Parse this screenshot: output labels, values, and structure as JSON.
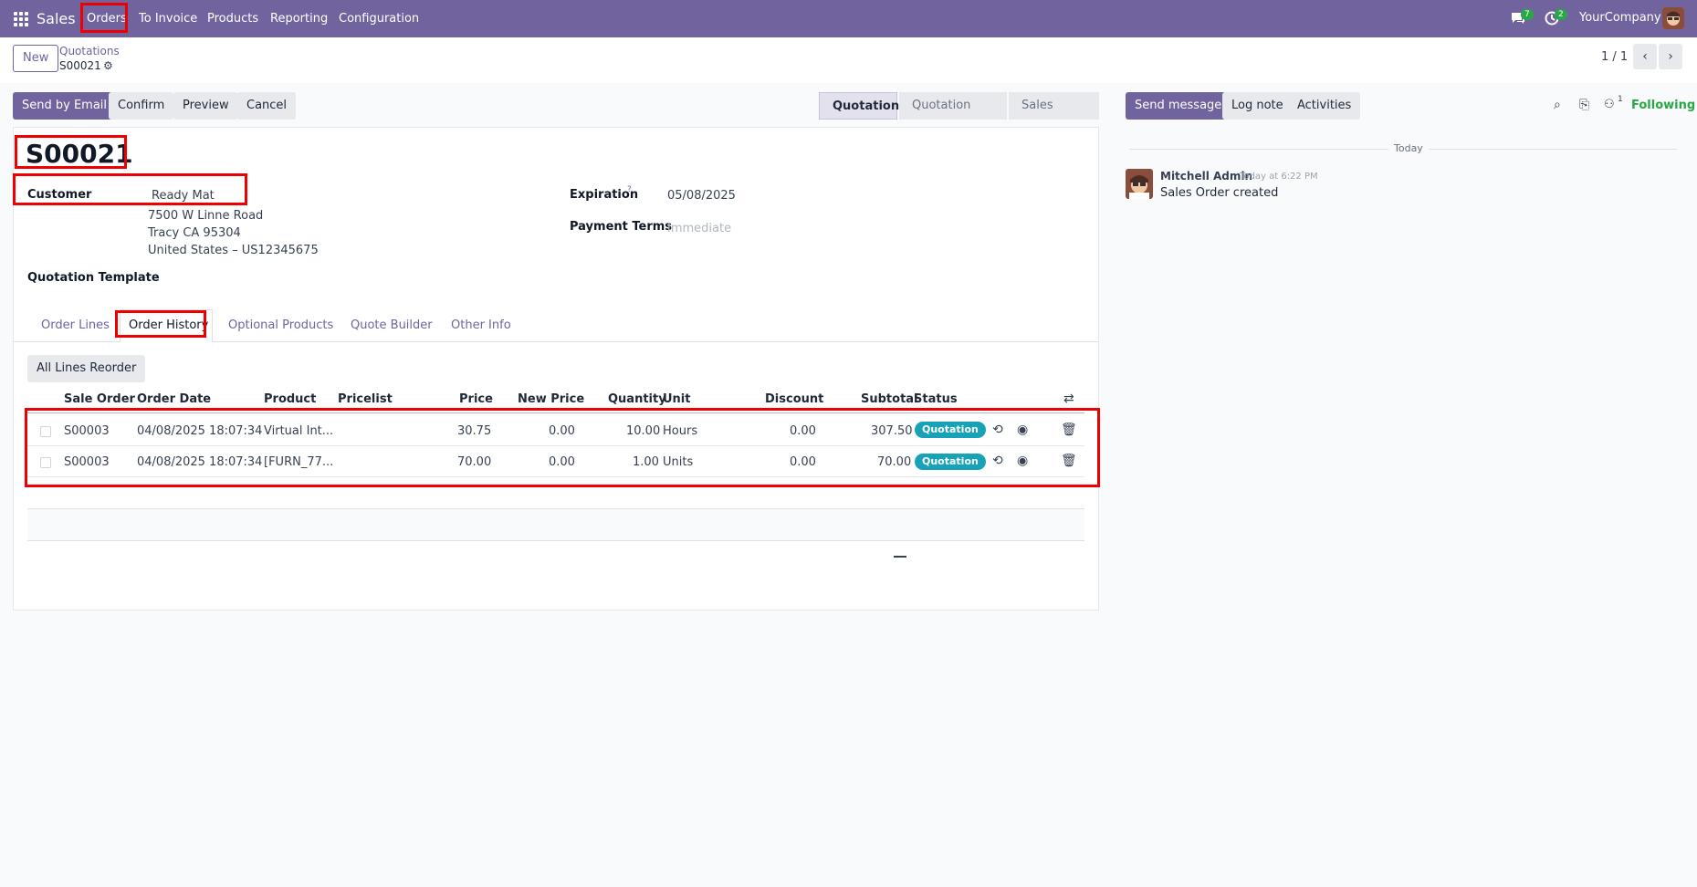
{
  "navbar": {
    "app_name": "Sales",
    "menu": [
      "Orders",
      "To Invoice",
      "Products",
      "Reporting",
      "Configuration"
    ],
    "messages_count": "7",
    "activities_count": "2",
    "company": "YourCompany"
  },
  "control": {
    "new_label": "New",
    "breadcrumb_parent": "Quotations",
    "breadcrumb_current": "S00021",
    "pager": "1 / 1"
  },
  "actions": {
    "send_email": "Send by Email",
    "confirm": "Confirm",
    "preview": "Preview",
    "cancel": "Cancel"
  },
  "statusbar": [
    "Quotation",
    "Quotation Sent",
    "Sales Order"
  ],
  "form": {
    "name": "S00021",
    "customer_label": "Customer",
    "customer_name": "Ready Mat",
    "address_line1": "7500 W Linne Road",
    "address_line2": "Tracy CA 95304",
    "address_line3": "United States – US12345675",
    "expiration_label": "Expiration",
    "expiration_help": "?",
    "expiration_value": "05/08/2025",
    "payment_terms_label": "Payment Terms",
    "payment_terms_placeholder": "Immediate",
    "template_label": "Quotation Template"
  },
  "tabs": [
    "Order Lines",
    "Order History",
    "Optional Products",
    "Quote Builder",
    "Other Info"
  ],
  "history": {
    "reorder_label": "All Lines Reorder",
    "columns": [
      "Sale Order",
      "Order Date",
      "Product",
      "Pricelist",
      "Price",
      "New Price",
      "Quantity",
      "Unit",
      "Discount",
      "Subtotal",
      "Status"
    ],
    "rows": [
      {
        "order": "S00003",
        "date": "04/08/2025 18:07:34",
        "product": "Virtual Int...",
        "pricelist": "",
        "price": "30.75",
        "new_price": "0.00",
        "qty": "10.00",
        "unit": "Hours",
        "discount": "0.00",
        "subtotal": "307.50",
        "status": "Quotation"
      },
      {
        "order": "S00003",
        "date": "04/08/2025 18:07:34",
        "product": "[FURN_77...",
        "pricelist": "",
        "price": "70.00",
        "new_price": "0.00",
        "qty": "1.00",
        "unit": "Units",
        "discount": "0.00",
        "subtotal": "70.00",
        "status": "Quotation"
      }
    ]
  },
  "chatter": {
    "send_message": "Send message",
    "log_note": "Log note",
    "activities": "Activities",
    "followers_count": "1",
    "following": "Following",
    "date_sep": "Today",
    "author": "Mitchell Admin",
    "time": "Today at 6:22 PM",
    "message": "Sales Order created"
  },
  "colors": {
    "brand": "#71639e",
    "status": "#17a2b8",
    "following": "#28a745",
    "highlight": "#ee0000"
  }
}
